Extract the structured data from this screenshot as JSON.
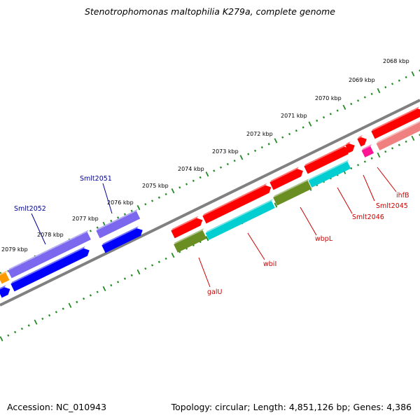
{
  "title": "Stenotrophomonas maltophilia K279a, complete genome",
  "accession_label": "Accession: NC_010943",
  "summary_label": "Topology: circular; Length: 4,851,126 bp; Genes: 4,386",
  "colors": {
    "backbone": "#808080",
    "ticks": "#228b22",
    "red": "#ff0000",
    "pink": "#f08080",
    "magenta": "#ff1493",
    "cyan": "#00ced1",
    "olive": "#6b8e23",
    "blue": "#0000ff",
    "slate": "#7b68ee",
    "orange": "#ff9900",
    "label_red": "#cc0000",
    "label_blue": "#000099"
  },
  "scale_labels": [
    "2068 kbp",
    "2069 kbp",
    "2070 kbp",
    "2071 kbp",
    "2072 kbp",
    "2073 kbp",
    "2074 kbp",
    "2075 kbp",
    "2076 kbp",
    "2077 kbp",
    "2078 kbp",
    "2079 kbp"
  ],
  "gene_labels": [
    {
      "name": "ihfB",
      "color": "label_red"
    },
    {
      "name": "Smlt2045",
      "color": "label_red"
    },
    {
      "name": "Smlt2046",
      "color": "label_red"
    },
    {
      "name": "wbpL",
      "color": "label_red"
    },
    {
      "name": "wbiI",
      "color": "label_red"
    },
    {
      "name": "galU",
      "color": "label_red"
    },
    {
      "name": "Smlt2051",
      "color": "label_blue"
    },
    {
      "name": "Smlt2052",
      "color": "label_blue"
    }
  ]
}
